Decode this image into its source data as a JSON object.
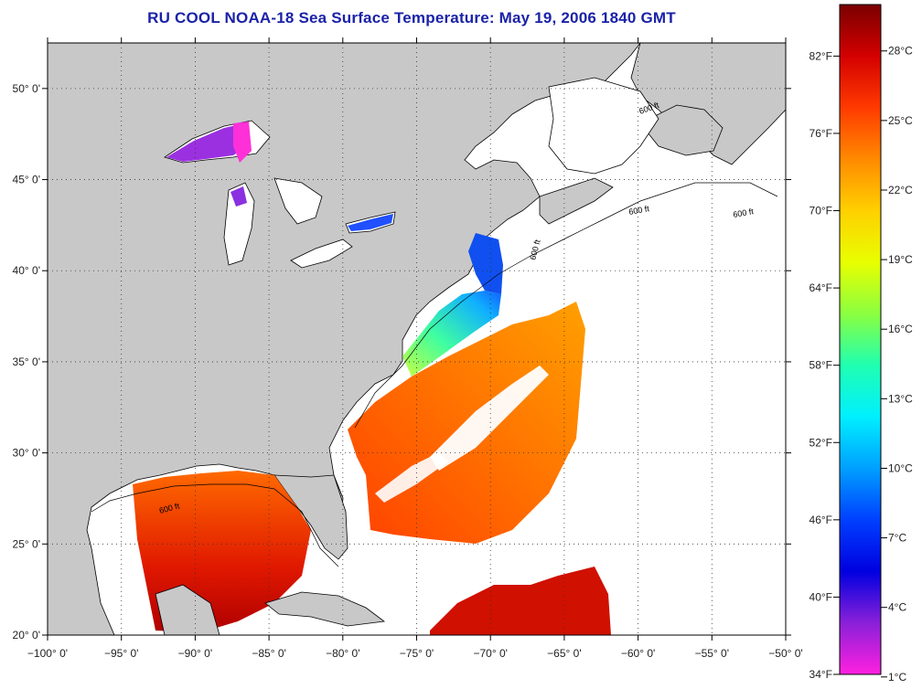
{
  "title": "RU COOL  NOAA-18  Sea Surface Temperature:  May 19, 2006 1840 GMT",
  "map": {
    "lon_range": [
      -100,
      -50
    ],
    "lat_range": [
      20,
      52.5
    ],
    "lon_ticks": [
      "−100° 0'",
      "−95° 0'",
      "−90° 0'",
      "−85° 0'",
      "−80° 0'",
      "−75° 0'",
      "−70° 0'",
      "−65° 0'",
      "−60° 0'",
      "−55° 0'",
      "−50° 0'"
    ],
    "lat_ticks": [
      "20° 0'",
      "25° 0'",
      "30° 0'",
      "35° 0'",
      "40° 0'",
      "45° 0'",
      "50° 0'"
    ],
    "isobath_labels": [
      "600 ft",
      "600 ft",
      "600 ft",
      "600 ft",
      "600 ft"
    ],
    "land_color": "#c8c8c8",
    "ocean_nodata_color": "#ffffff"
  },
  "colorbar": {
    "fahrenheit_labels": [
      "82°F",
      "76°F",
      "70°F",
      "64°F",
      "58°F",
      "52°F",
      "46°F",
      "40°F",
      "34°F"
    ],
    "celsius_labels": [
      "28°C",
      "25°C",
      "22°C",
      "19°C",
      "16°C",
      "13°C",
      "10°C",
      "7°C",
      "4°C",
      "1°C"
    ],
    "gradient_colors": [
      "#7a0000",
      "#d40000",
      "#ff3a00",
      "#ff8a00",
      "#ffd000",
      "#e8ff00",
      "#8aff40",
      "#20ffb0",
      "#00f0ff",
      "#00a0ff",
      "#0040ff",
      "#0000e0",
      "#8a20d8",
      "#ff20e0"
    ]
  }
}
